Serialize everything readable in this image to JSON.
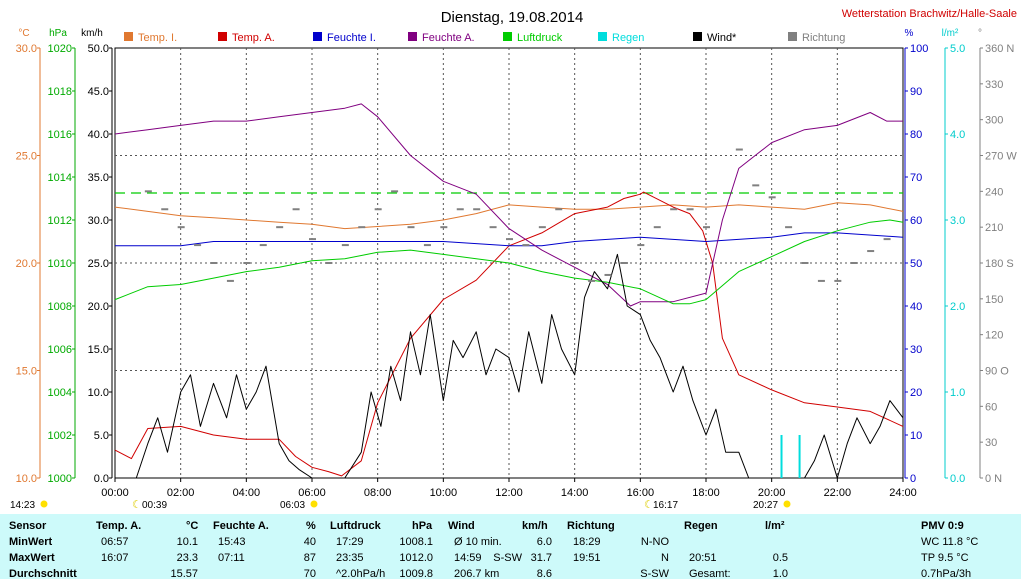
{
  "header": {
    "title": "Dienstag, 19.08.2014",
    "station": "Wetterstation Brachwitz/Halle-Saale"
  },
  "colors": {
    "temp_i": "#e07830",
    "temp_a": "#d00000",
    "feuchte_i": "#0000cc",
    "feuchte_a": "#800080",
    "luftdruck": "#00cc00",
    "regen": "#00dddd",
    "wind": "#000000",
    "richtung": "#808080",
    "stats_bg": "#cdfafa"
  },
  "legend": [
    {
      "label": "Temp. I.",
      "color": "#e07830"
    },
    {
      "label": "Temp. A.",
      "color": "#d00000"
    },
    {
      "label": "Feuchte I.",
      "color": "#0000cc"
    },
    {
      "label": "Feuchte A.",
      "color": "#800080"
    },
    {
      "label": "Luftdruck",
      "color": "#00cc00"
    },
    {
      "label": "Regen",
      "color": "#00dddd"
    },
    {
      "label": "Wind*",
      "color": "#000000"
    },
    {
      "label": "Richtung",
      "color": "#808080"
    }
  ],
  "axes": {
    "unit_temp": "°C",
    "unit_hpa": "hPa",
    "unit_kmh": "km/h",
    "unit_pct": "%",
    "unit_rain": "l/m²",
    "unit_deg": "°",
    "temp_ticks": [
      "30.0",
      "25.0",
      "20.0",
      "15.0",
      "10.0"
    ],
    "hpa_ticks": [
      "1020",
      "1018",
      "1016",
      "1014",
      "1012",
      "1010",
      "1008",
      "1006",
      "1004",
      "1002",
      "1000"
    ],
    "kmh_ticks": [
      "50.0",
      "45.0",
      "40.0",
      "35.0",
      "30.0",
      "25.0",
      "20.0",
      "15.0",
      "10.0",
      "5.0",
      "0.0"
    ],
    "pct_ticks": [
      "100",
      "90",
      "80",
      "70",
      "60",
      "50",
      "40",
      "30",
      "20",
      "10",
      "0"
    ],
    "rain_ticks": [
      "5.0",
      "4.0",
      "3.0",
      "2.0",
      "1.0",
      "0.0"
    ],
    "deg_ticks": [
      "360 N",
      "330",
      "300",
      "270 W",
      "240",
      "210",
      "180 S",
      "150",
      "120",
      "90 O",
      "60",
      "30",
      "0 N"
    ],
    "x_ticks": [
      "00:00",
      "02:00",
      "04:00",
      "06:00",
      "08:00",
      "10:00",
      "12:00",
      "14:00",
      "16:00",
      "18:00",
      "20:00",
      "22:00",
      "24:00"
    ]
  },
  "sun_marks": {
    "sunrise": "06:03",
    "sunset": "20:27",
    "daylight": "14:23",
    "moonset": "00:39",
    "moonrise": "16:17"
  },
  "stats": {
    "headers": [
      {
        "name": "Sensor",
        "unit": ""
      },
      {
        "name": "Temp. A.",
        "unit": "°C"
      },
      {
        "name": "Feuchte A.",
        "unit": "%"
      },
      {
        "name": "Luftdruck",
        "unit": "hPa"
      },
      {
        "name": "Wind",
        "unit": "km/h"
      },
      {
        "name": "Richtung",
        "unit": ""
      },
      {
        "name": "Regen",
        "unit": "l/m²"
      }
    ],
    "rows": [
      {
        "label": "MinWert",
        "temp_time": "06:57",
        "temp_val": "10.1",
        "hum_time": "15:43",
        "hum_val": "40",
        "press_time": "17:29",
        "press_val": "1008.1",
        "wind_time": "Ø 10 min.",
        "wind_dir": "",
        "wind_val": "6.0",
        "dir_time": "18:29",
        "dir_val": "N-NO",
        "rain_time": "",
        "rain_val": ""
      },
      {
        "label": "MaxWert",
        "temp_time": "16:07",
        "temp_val": "23.3",
        "hum_time": "07:11",
        "hum_val": "87",
        "press_time": "23:35",
        "press_val": "1012.0",
        "wind_time": "14:59",
        "wind_dir": "S-SW",
        "wind_val": "31.7",
        "dir_time": "19:51",
        "dir_val": "N",
        "rain_time": "20:51",
        "rain_val": "0.5"
      },
      {
        "label": "Durchschnitt",
        "temp_time": "",
        "temp_val": "15.57",
        "hum_time": "",
        "hum_val": "70",
        "press_time": "^2.0hPa/h",
        "press_val": "1009.8",
        "wind_time": "206.7 km",
        "wind_dir": "",
        "wind_val": "8.6",
        "dir_time": "",
        "dir_val": "S-SW",
        "rain_time": "Gesamt:",
        "rain_val": "1.0"
      }
    ],
    "pmv": {
      "title": "PMV 0:9",
      "wc": "WC 11.8 °C",
      "tp": "TP 9.5 °C",
      "trend": "0.7hPa/3h"
    }
  },
  "chart_data": {
    "type": "line",
    "x_unit": "hours",
    "xlim": [
      0,
      24
    ],
    "axes_ranges": {
      "temp": [
        10,
        30
      ],
      "hpa": [
        1000,
        1020
      ],
      "kmh": [
        0,
        50
      ],
      "pct": [
        0,
        100
      ],
      "rain": [
        0,
        5
      ],
      "deg": [
        0,
        360
      ]
    },
    "grid": true,
    "series": [
      {
        "name": "Temp. I.",
        "axis": "temp",
        "x": [
          0,
          1,
          2,
          3,
          4,
          5,
          6,
          7,
          8,
          9,
          10,
          11,
          12,
          13,
          14,
          15,
          16,
          17,
          18,
          19,
          20,
          21,
          22,
          23,
          24
        ],
        "y": [
          22.6,
          22.4,
          22.2,
          22.1,
          22.0,
          21.9,
          21.8,
          21.6,
          21.7,
          21.8,
          22.0,
          22.3,
          22.7,
          22.6,
          22.5,
          22.5,
          22.6,
          22.7,
          22.6,
          22.7,
          22.6,
          22.5,
          22.8,
          22.7,
          22.4
        ]
      },
      {
        "name": "Temp. A.",
        "axis": "temp",
        "x": [
          0,
          0.5,
          1,
          2,
          3,
          4,
          5,
          5.5,
          6,
          6.5,
          6.9,
          7.5,
          8,
          9,
          10,
          11,
          12,
          13,
          14,
          15,
          15.5,
          16,
          16.1,
          17,
          17.5,
          17.9,
          18.2,
          18.5,
          19,
          20,
          21,
          22,
          23,
          24
        ],
        "y": [
          11.3,
          10.9,
          12.3,
          12.4,
          12.0,
          11.8,
          11.8,
          11.0,
          10.5,
          10.3,
          10.1,
          10.8,
          13.5,
          16.5,
          18.3,
          19.2,
          20.8,
          21.4,
          22.3,
          22.6,
          23.0,
          23.2,
          23.3,
          22.6,
          22.3,
          21.5,
          20.0,
          16.5,
          14.8,
          14.1,
          13.5,
          13.3,
          13.1,
          12.4
        ]
      },
      {
        "name": "Feuchte I.",
        "axis": "pct",
        "x": [
          0,
          2,
          3,
          4,
          6,
          8,
          10,
          12,
          13,
          14,
          16,
          18,
          20,
          21,
          22,
          24
        ],
        "y": [
          54,
          54,
          55,
          55,
          55,
          55,
          55,
          54,
          54,
          55,
          56,
          55,
          56,
          57,
          57,
          56
        ]
      },
      {
        "name": "Feuchte A.",
        "axis": "pct",
        "x": [
          0,
          1,
          2,
          3,
          4,
          5,
          6,
          7,
          7.5,
          8,
          9,
          10,
          11,
          12,
          13,
          14,
          15,
          15.7,
          16,
          17,
          18,
          18.5,
          19,
          20,
          21,
          22,
          23,
          23.5,
          24
        ],
        "y": [
          80,
          81,
          82,
          83,
          83,
          84,
          85,
          86,
          87,
          84,
          75,
          69,
          66,
          58,
          53,
          49,
          45,
          40,
          41,
          41,
          43,
          60,
          72,
          78,
          81,
          82,
          85,
          83,
          83
        ]
      },
      {
        "name": "Luftdruck",
        "axis": "hpa",
        "x": [
          0,
          1,
          2,
          3,
          4,
          5,
          6,
          7,
          8,
          9,
          10,
          11,
          12,
          13,
          14,
          15,
          16,
          17,
          17.5,
          18,
          19,
          20,
          21,
          22,
          23,
          23.6,
          24
        ],
        "y": [
          1008.3,
          1008.9,
          1009.0,
          1009.3,
          1009.6,
          1009.8,
          1010.1,
          1010.2,
          1010.5,
          1010.6,
          1010.4,
          1010.2,
          1010.0,
          1009.6,
          1009.3,
          1009.1,
          1008.8,
          1008.1,
          1008.1,
          1008.3,
          1009.6,
          1010.3,
          1011.0,
          1011.5,
          1011.9,
          1012.0,
          1011.9
        ]
      },
      {
        "name": "Wind*",
        "axis": "kmh",
        "x": [
          0,
          0.4,
          0.65,
          1,
          1.3,
          1.6,
          2,
          2.3,
          2.6,
          3,
          3.4,
          3.7,
          4,
          4.3,
          4.6,
          5,
          5.3,
          5.6,
          6,
          6.5,
          7,
          7.5,
          7.8,
          8.1,
          8.4,
          8.7,
          9,
          9.3,
          9.6,
          10,
          10.3,
          10.6,
          11,
          11.3,
          11.6,
          12,
          12.3,
          12.6,
          13,
          13.3,
          13.6,
          14,
          14.3,
          14.6,
          15,
          15.3,
          15.6,
          16,
          16.3,
          16.6,
          17,
          17.3,
          17.6,
          18,
          18.3,
          18.6,
          19,
          19.3,
          19.6,
          20,
          20.3,
          20.6,
          21,
          21.3,
          21.6,
          22,
          22.3,
          22.6,
          23,
          23.3,
          23.6,
          24
        ],
        "y": [
          0,
          0,
          0,
          4,
          7,
          3,
          10,
          12,
          6,
          11,
          7,
          12,
          8,
          10,
          13,
          4,
          2,
          1,
          0,
          0,
          0,
          3,
          10,
          6,
          13,
          9,
          17,
          12,
          19,
          9,
          16,
          14,
          17,
          12,
          15,
          14,
          10,
          17,
          11,
          19,
          15,
          12,
          21,
          24,
          22,
          26,
          20,
          19,
          16,
          14,
          10,
          13,
          9,
          5,
          8,
          3,
          3,
          0,
          0,
          0,
          0,
          0,
          0,
          2,
          5,
          0,
          4,
          7,
          4,
          6,
          9,
          7
        ]
      },
      {
        "name": "Regen",
        "axis": "rain",
        "type": "bar",
        "x": [
          20.3,
          20.85
        ],
        "y": [
          0.5,
          0.5
        ]
      },
      {
        "name": "Richtung",
        "axis": "deg",
        "type": "scatter",
        "x": [
          1,
          1.5,
          2,
          2.5,
          3,
          3.5,
          4,
          4.5,
          5,
          5.5,
          6,
          6.5,
          7,
          7.5,
          8,
          8.5,
          9,
          9.5,
          10,
          10.5,
          11,
          11.5,
          12,
          12.5,
          13,
          13.5,
          14,
          14.5,
          15,
          15.5,
          16,
          16.5,
          17,
          17.5,
          18,
          18.5,
          19,
          19.5,
          20,
          20.5,
          21,
          21.5,
          22,
          22.5,
          23,
          23.5
        ],
        "y": [
          240,
          225,
          210,
          195,
          180,
          165,
          180,
          195,
          210,
          225,
          200,
          180,
          195,
          210,
          225,
          240,
          210,
          195,
          210,
          225,
          225,
          210,
          200,
          195,
          210,
          225,
          180,
          165,
          170,
          180,
          195,
          210,
          225,
          225,
          210,
          0,
          275,
          245,
          235,
          210,
          180,
          165,
          165,
          180,
          190,
          200
        ]
      }
    ]
  }
}
